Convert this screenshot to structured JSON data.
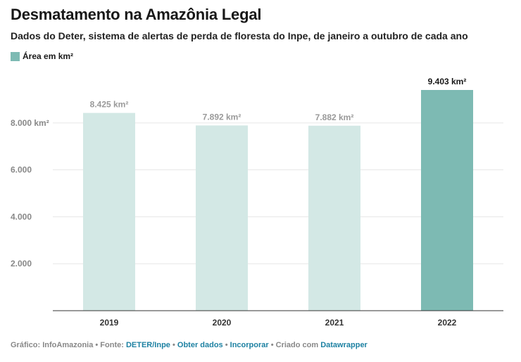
{
  "title": "Desmatamento na Amazônia Legal",
  "subtitle": "Dados do Deter, sistema de alertas de perda de floresta do Inpe, de janeiro a outubro de cada ano",
  "legend": {
    "label": "Área em km²",
    "color": "#7dbab3"
  },
  "colors": {
    "highlight": "#7dbab3",
    "muted": "#d3e8e5",
    "grid": "#e6e6e6",
    "baseline": "#333333",
    "tick_text": "#888888",
    "label_muted": "#999999",
    "label_highlight": "#181818"
  },
  "chart_data": {
    "type": "bar",
    "categories": [
      "2019",
      "2020",
      "2021",
      "2022"
    ],
    "series": [
      {
        "name": "Área em km²",
        "values": [
          8425,
          7892,
          7882,
          9403
        ]
      }
    ],
    "value_labels": [
      "8.425 km²",
      "7.892 km²",
      "7.882 km²",
      "9.403 km²"
    ],
    "highlighted_index": 3,
    "yticks": [
      {
        "value": 2000,
        "label": "2.000"
      },
      {
        "value": 4000,
        "label": "4.000"
      },
      {
        "value": 6000,
        "label": "6.000"
      },
      {
        "value": 8000,
        "label": "8.000 km²"
      }
    ],
    "ylim": [
      0,
      9403
    ],
    "grid": true
  },
  "footer": {
    "prefix": "Gráfico: InfoAmazonia • Fonte: ",
    "source_link": "DETER/Inpe",
    "sep1": " • ",
    "get_data": "Obter dados",
    "sep2": " • ",
    "embed": "Incorporar",
    "created_with": " • Criado com ",
    "tool": "Datawrapper"
  }
}
